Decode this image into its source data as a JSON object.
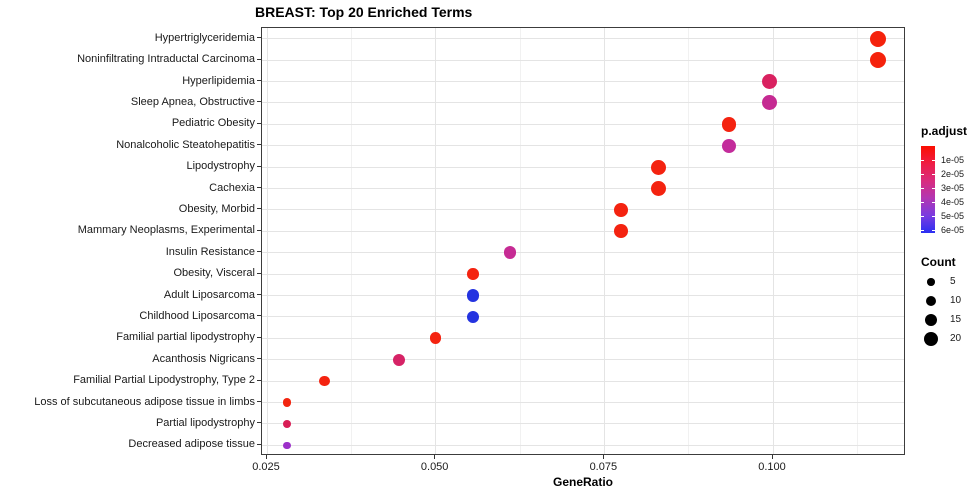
{
  "chart_data": {
    "type": "scatter",
    "title": "BREAST: Top 20 Enriched Terms",
    "xlabel": "GeneRatio",
    "ylabel": "",
    "xlim": [
      0.0243,
      0.1197
    ],
    "x_ticks": [
      {
        "value": 0.025,
        "label": "0.025"
      },
      {
        "value": 0.05,
        "label": "0.050"
      },
      {
        "value": 0.075,
        "label": "0.075"
      },
      {
        "value": 0.1,
        "label": "0.100"
      }
    ],
    "x_minor_ticks": [
      0.0375,
      0.0625,
      0.0875,
      0.1125
    ],
    "grid": true,
    "points": [
      {
        "term": "Hypertriglyceridemia",
        "gene_ratio": 0.1155,
        "count": 23,
        "p_adjust": 2e-06,
        "color": "#F5220C"
      },
      {
        "term": "Noninfiltrating Intraductal Carcinoma",
        "gene_ratio": 0.1155,
        "count": 23,
        "p_adjust": 2e-06,
        "color": "#F5220C"
      },
      {
        "term": "Hyperlipidemia",
        "gene_ratio": 0.0995,
        "count": 20,
        "p_adjust": 2.3e-05,
        "color": "#D92160"
      },
      {
        "term": "Sleep Apnea, Obstructive",
        "gene_ratio": 0.0995,
        "count": 20,
        "p_adjust": 3e-05,
        "color": "#C52A92"
      },
      {
        "term": "Pediatric Obesity",
        "gene_ratio": 0.0935,
        "count": 19,
        "p_adjust": 3e-06,
        "color": "#F42310"
      },
      {
        "term": "Nonalcoholic Steatohepatitis",
        "gene_ratio": 0.0935,
        "count": 18,
        "p_adjust": 3.1e-05,
        "color": "#C32C9B"
      },
      {
        "term": "Lipodystrophy",
        "gene_ratio": 0.083,
        "count": 20,
        "p_adjust": 2e-06,
        "color": "#F42310"
      },
      {
        "term": "Cachexia",
        "gene_ratio": 0.083,
        "count": 20,
        "p_adjust": 2e-06,
        "color": "#F42310"
      },
      {
        "term": "Obesity, Morbid",
        "gene_ratio": 0.0775,
        "count": 17,
        "p_adjust": 2e-06,
        "color": "#F42310"
      },
      {
        "term": "Mammary Neoplasms, Experimental",
        "gene_ratio": 0.0775,
        "count": 17,
        "p_adjust": 2e-06,
        "color": "#F42310"
      },
      {
        "term": "Insulin Resistance",
        "gene_ratio": 0.061,
        "count": 14,
        "p_adjust": 3e-05,
        "color": "#C62B94"
      },
      {
        "term": "Obesity, Visceral",
        "gene_ratio": 0.0555,
        "count": 12,
        "p_adjust": 2e-06,
        "color": "#F42310"
      },
      {
        "term": "Adult Liposarcoma",
        "gene_ratio": 0.0555,
        "count": 13,
        "p_adjust": 6e-05,
        "color": "#2433E0"
      },
      {
        "term": "Childhood Liposarcoma",
        "gene_ratio": 0.0555,
        "count": 13,
        "p_adjust": 6e-05,
        "color": "#2433E0"
      },
      {
        "term": "Familial partial lipodystrophy",
        "gene_ratio": 0.05,
        "count": 12,
        "p_adjust": 2e-06,
        "color": "#F42310"
      },
      {
        "term": "Acanthosis Nigricans",
        "gene_ratio": 0.0445,
        "count": 13,
        "p_adjust": 2.4e-05,
        "color": "#D62366"
      },
      {
        "term": "Familial Partial Lipodystrophy, Type 2",
        "gene_ratio": 0.0335,
        "count": 10,
        "p_adjust": 2e-06,
        "color": "#F42310"
      },
      {
        "term": "Loss of subcutaneous adipose tissue in limbs",
        "gene_ratio": 0.028,
        "count": 6,
        "p_adjust": 2e-06,
        "color": "#F2250F"
      },
      {
        "term": "Partial lipodystrophy",
        "gene_ratio": 0.028,
        "count": 6,
        "p_adjust": 2.2e-05,
        "color": "#D81D55"
      },
      {
        "term": "Decreased adipose tissue",
        "gene_ratio": 0.028,
        "count": 5,
        "p_adjust": 4.2e-05,
        "color": "#9C30C9"
      }
    ],
    "legend": {
      "p_adjust": {
        "title": "p.adjust",
        "domain": [
          0,
          6.2e-05
        ],
        "ticks": [
          {
            "value": 1e-05,
            "label": "1e-05"
          },
          {
            "value": 2e-05,
            "label": "2e-05"
          },
          {
            "value": 3e-05,
            "label": "3e-05"
          },
          {
            "value": 4e-05,
            "label": "4e-05"
          },
          {
            "value": 5e-05,
            "label": "5e-05"
          },
          {
            "value": 6e-05,
            "label": "6e-05"
          }
        ],
        "gradient_stops": [
          "#FB0E00",
          "#EF1D44",
          "#D92B7E",
          "#B236B2",
          "#7A3BE0",
          "#2B2FF2"
        ]
      },
      "count": {
        "title": "Count",
        "entries": [
          5,
          10,
          15,
          20
        ],
        "dot_color": "#000000"
      }
    }
  }
}
